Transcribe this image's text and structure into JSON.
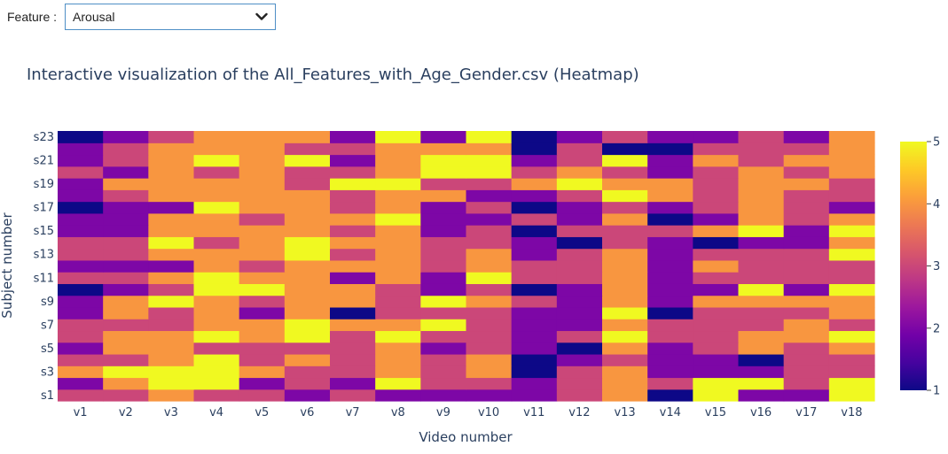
{
  "controls": {
    "feature_label": "Feature :",
    "feature_selected": "Arousal"
  },
  "chart_data": {
    "type": "heatmap",
    "title": "Interactive visualization of the All_Features_with_Age_Gender.csv (Heatmap)",
    "xlabel": "Video number",
    "ylabel": "Subject number",
    "x": [
      "v1",
      "v2",
      "v3",
      "v4",
      "v5",
      "v6",
      "v7",
      "v8",
      "v9",
      "v10",
      "v11",
      "v12",
      "v13",
      "v14",
      "v15",
      "v16",
      "v17",
      "v18"
    ],
    "y": [
      "s1",
      "s2",
      "s3",
      "s4",
      "s5",
      "s6",
      "s7",
      "s8",
      "s9",
      "s10",
      "s11",
      "s12",
      "s13",
      "s14",
      "s15",
      "s16",
      "s17",
      "s18",
      "s19",
      "s20",
      "s21",
      "s22",
      "s23"
    ],
    "y_tick_labels": [
      "s1",
      "s3",
      "s5",
      "s7",
      "s9",
      "s11",
      "s13",
      "s15",
      "s17",
      "s19",
      "s21",
      "s23"
    ],
    "zmin": 1,
    "zmax": 5,
    "colorscale": "plasma",
    "colorbar_ticks": [
      "1",
      "2",
      "3",
      "4",
      "5"
    ],
    "z": [
      [
        3,
        3,
        4,
        3,
        3,
        2,
        3,
        2,
        2,
        2,
        2,
        3,
        4,
        1,
        5,
        2,
        2,
        5
      ],
      [
        2,
        4,
        5,
        5,
        2,
        3,
        2,
        5,
        3,
        3,
        2,
        3,
        4,
        3,
        5,
        5,
        3,
        5
      ],
      [
        4,
        5,
        5,
        5,
        4,
        3,
        3,
        4,
        3,
        4,
        1,
        3,
        4,
        2,
        2,
        2,
        3,
        3
      ],
      [
        3,
        3,
        4,
        5,
        3,
        4,
        3,
        4,
        3,
        4,
        1,
        2,
        3,
        2,
        2,
        1,
        3,
        3
      ],
      [
        2,
        4,
        4,
        3,
        3,
        3,
        3,
        4,
        2,
        3,
        2,
        1,
        4,
        2,
        3,
        4,
        3,
        4
      ],
      [
        3,
        4,
        4,
        5,
        4,
        5,
        3,
        5,
        3,
        3,
        2,
        3,
        5,
        3,
        3,
        4,
        4,
        5
      ],
      [
        3,
        3,
        3,
        4,
        4,
        5,
        4,
        4,
        5,
        3,
        2,
        2,
        4,
        3,
        3,
        3,
        4,
        3
      ],
      [
        2,
        4,
        3,
        4,
        2,
        4,
        1,
        3,
        3,
        3,
        2,
        2,
        5,
        1,
        3,
        3,
        3,
        4
      ],
      [
        2,
        4,
        5,
        4,
        3,
        4,
        4,
        3,
        5,
        4,
        3,
        2,
        4,
        2,
        4,
        4,
        4,
        4
      ],
      [
        1,
        2,
        3,
        5,
        5,
        4,
        4,
        3,
        2,
        3,
        1,
        2,
        4,
        2,
        2,
        5,
        2,
        5
      ],
      [
        3,
        3,
        4,
        5,
        4,
        4,
        2,
        4,
        2,
        5,
        3,
        3,
        4,
        2,
        3,
        3,
        3,
        3
      ],
      [
        2,
        2,
        2,
        4,
        3,
        4,
        4,
        4,
        3,
        4,
        3,
        3,
        4,
        2,
        4,
        3,
        3,
        3
      ],
      [
        3,
        3,
        4,
        4,
        4,
        5,
        3,
        4,
        3,
        4,
        2,
        3,
        4,
        2,
        3,
        3,
        3,
        5
      ],
      [
        3,
        3,
        5,
        3,
        4,
        5,
        4,
        4,
        3,
        3,
        2,
        1,
        3,
        2,
        1,
        2,
        2,
        4
      ],
      [
        2,
        2,
        4,
        4,
        4,
        4,
        3,
        4,
        2,
        3,
        1,
        3,
        3,
        3,
        4,
        5,
        2,
        5
      ],
      [
        2,
        2,
        4,
        4,
        3,
        4,
        4,
        5,
        2,
        2,
        3,
        2,
        4,
        1,
        2,
        4,
        3,
        4
      ],
      [
        1,
        2,
        2,
        5,
        4,
        4,
        3,
        4,
        2,
        3,
        1,
        2,
        3,
        2,
        3,
        4,
        3,
        2
      ],
      [
        2,
        3,
        4,
        4,
        4,
        4,
        3,
        4,
        4,
        2,
        2,
        3,
        5,
        4,
        3,
        4,
        3,
        3
      ],
      [
        2,
        4,
        4,
        4,
        4,
        3,
        5,
        5,
        3,
        3,
        4,
        5,
        4,
        4,
        3,
        4,
        4,
        3
      ],
      [
        3,
        2,
        4,
        3,
        4,
        3,
        3,
        4,
        5,
        5,
        3,
        4,
        3,
        2,
        3,
        4,
        3,
        4
      ],
      [
        2,
        3,
        4,
        5,
        4,
        5,
        2,
        4,
        5,
        5,
        2,
        3,
        5,
        2,
        4,
        3,
        4,
        4
      ],
      [
        2,
        3,
        4,
        4,
        4,
        3,
        3,
        4,
        4,
        4,
        1,
        3,
        1,
        1,
        3,
        3,
        3,
        4
      ],
      [
        1,
        2,
        3,
        4,
        4,
        4,
        2,
        5,
        2,
        5,
        1,
        2,
        3,
        2,
        2,
        3,
        2,
        4
      ]
    ]
  }
}
